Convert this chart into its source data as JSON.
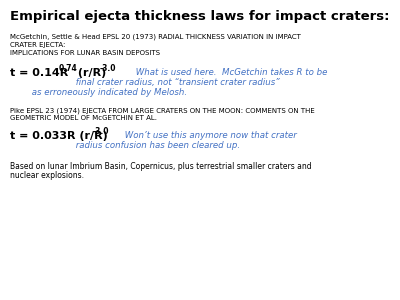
{
  "title": "Empirical ejecta thickness laws for impact craters:",
  "bg_color": "#ffffff",
  "title_color": "#000000",
  "title_fontsize": 9.5,
  "ref1_line1": "McGetchin, Settle & Head EPSL 20 (1973) RADIAL THICKNESS VARIATION IN IMPACT",
  "ref1_line2": "CRATER EJECTA:",
  "ref1_line3": "IMPLICATIONS FOR LUNAR BASIN DEPOSITS",
  "ref1_fontsize": 5.0,
  "eq1_fontsize": 8.0,
  "eq1_sup_fontsize": 5.5,
  "eq1_comment_line1": "     What is used here.  McGetchin takes R to be",
  "eq1_comment_line2": "             final crater radius, not “transient crater radius”",
  "eq1_comment_line3": "     as erroneously indicated by Melosh.",
  "eq1_comment_color": "#4472c4",
  "eq1_comment_fontsize": 6.2,
  "ref2_line1": "Pike EPSL 23 (1974) EJECTA FROM LARGE CRATERS ON THE MOON: COMMENTS ON THE",
  "ref2_line2": "GEOMETRIC MODEL OF McGETCHIN ET AL.",
  "ref2_fontsize": 5.0,
  "eq2_fontsize": 8.0,
  "eq2_sup_fontsize": 5.5,
  "eq2_comment_line1": "     Won’t use this anymore now that crater",
  "eq2_comment_line2": "             radius confusion has been cleared up.",
  "eq2_comment_color": "#4472c4",
  "eq2_comment_fontsize": 6.2,
  "footer_line1": "Based on lunar Imbrium Basin, Copernicus, plus terrestrial smaller craters and",
  "footer_line2": "nuclear explosions.",
  "footer_fontsize": 5.5
}
